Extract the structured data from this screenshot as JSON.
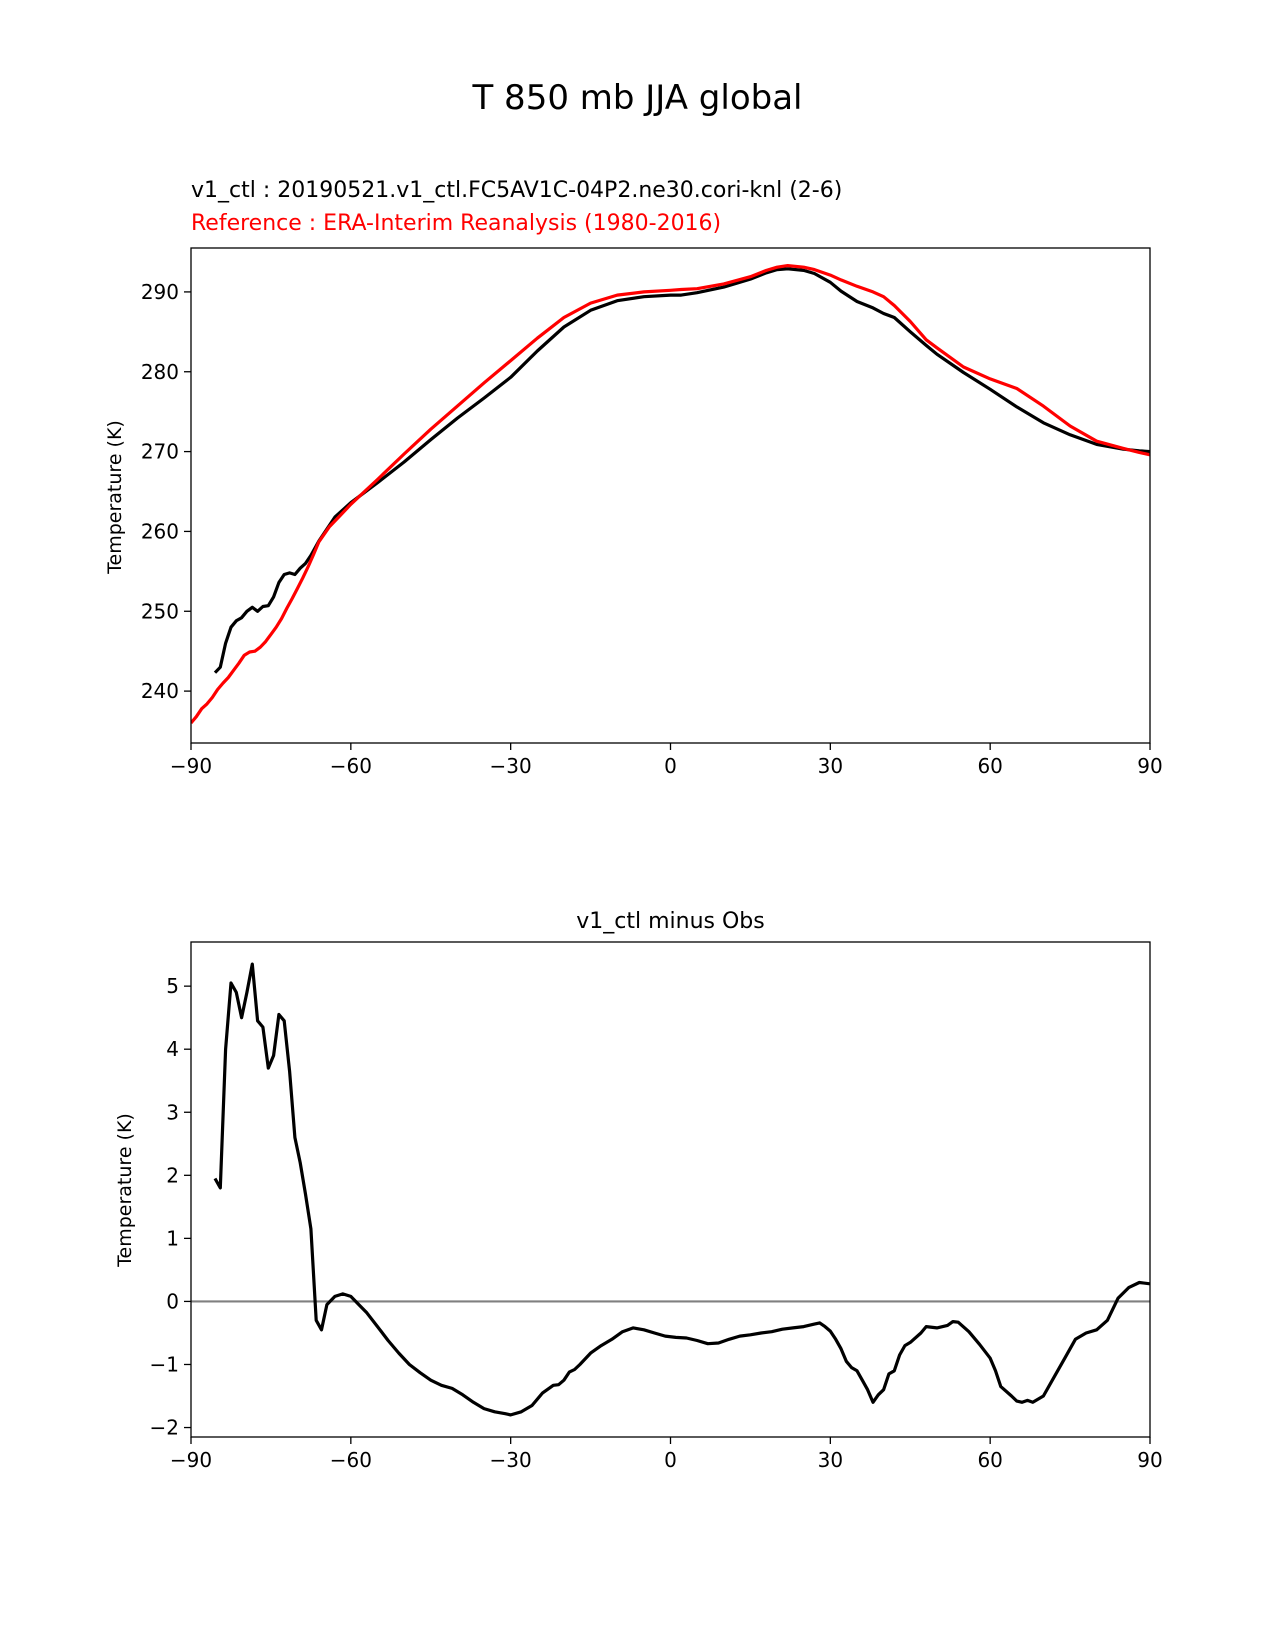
{
  "figure": {
    "title": "T 850 mb JJA global"
  },
  "chart_data": [
    {
      "type": "line",
      "title_lines": [
        {
          "text": "v1_ctl : 20190521.v1_ctl.FC5AV1C-04P2.ne30.cori-knl (2-6)",
          "color": "#000000"
        },
        {
          "text": "Reference : ERA-Interim Reanalysis (1980-2016)",
          "color": "#ff0000"
        }
      ],
      "xlabel": "",
      "ylabel": "Temperature (K)",
      "xlim": [
        -90,
        90
      ],
      "ylim": [
        233.5,
        295.5
      ],
      "xticks": [
        -90,
        -60,
        -30,
        0,
        30,
        60,
        90
      ],
      "xtick_labels": [
        "−90",
        "−60",
        "−30",
        "0",
        "30",
        "60",
        "90"
      ],
      "yticks": [
        240,
        250,
        260,
        270,
        280,
        290
      ],
      "ytick_labels": [
        "240",
        "250",
        "260",
        "270",
        "280",
        "290"
      ],
      "series": [
        {
          "name": "v1_ctl",
          "color": "#000000",
          "x": [
            -85.5,
            -84.5,
            -83.5,
            -82.5,
            -81.5,
            -80.5,
            -79.5,
            -78.5,
            -77.5,
            -76.5,
            -75.5,
            -74.5,
            -73.5,
            -72.5,
            -71.5,
            -70.5,
            -69.5,
            -68.5,
            -67.5,
            -66,
            -63,
            -60,
            -55,
            -50,
            -45,
            -40,
            -35,
            -30,
            -25,
            -20,
            -15,
            -10,
            -5,
            0,
            2,
            5,
            10,
            15,
            18,
            20,
            22,
            25,
            27,
            30,
            32,
            35,
            38,
            40,
            42,
            45,
            48,
            50,
            55,
            60,
            65,
            70,
            75,
            80,
            85,
            88,
            90
          ],
          "y": [
            242.3,
            243.0,
            246.0,
            248.0,
            248.8,
            249.2,
            250.0,
            250.5,
            250.0,
            250.6,
            250.7,
            251.8,
            253.6,
            254.6,
            254.8,
            254.6,
            255.4,
            256.0,
            257.0,
            258.8,
            261.8,
            263.6,
            266.1,
            268.7,
            271.5,
            274.2,
            276.7,
            279.3,
            282.6,
            285.6,
            287.7,
            288.9,
            289.4,
            289.6,
            289.6,
            289.9,
            290.6,
            291.6,
            292.4,
            292.8,
            292.9,
            292.7,
            292.3,
            291.2,
            290.1,
            288.8,
            288.0,
            287.3,
            286.8,
            285.0,
            283.3,
            282.2,
            279.9,
            277.8,
            275.6,
            273.6,
            272.1,
            270.9,
            270.3,
            270.1,
            270.0
          ]
        },
        {
          "name": "Reference",
          "color": "#ff0000",
          "x": [
            -90,
            -89,
            -88,
            -87,
            -86,
            -85,
            -84,
            -83,
            -82,
            -81,
            -80,
            -79,
            -78,
            -77,
            -76,
            -75,
            -74,
            -73,
            -72,
            -71,
            -70,
            -69,
            -68,
            -67,
            -66,
            -64,
            -62,
            -60,
            -55,
            -50,
            -45,
            -40,
            -35,
            -30,
            -25,
            -20,
            -15,
            -10,
            -5,
            0,
            2,
            5,
            10,
            15,
            18,
            20,
            22,
            25,
            27,
            30,
            32,
            35,
            38,
            40,
            42,
            45,
            48,
            50,
            55,
            60,
            65,
            70,
            75,
            80,
            85,
            88,
            90
          ],
          "y": [
            236.0,
            236.8,
            237.8,
            238.4,
            239.2,
            240.2,
            241.0,
            241.7,
            242.6,
            243.5,
            244.5,
            244.9,
            245.0,
            245.5,
            246.2,
            247.1,
            248.0,
            249.1,
            250.4,
            251.6,
            252.9,
            254.2,
            255.6,
            257.1,
            258.7,
            260.6,
            262.0,
            263.4,
            266.5,
            269.7,
            272.8,
            275.7,
            278.6,
            281.4,
            284.2,
            286.8,
            288.6,
            289.6,
            290.0,
            290.2,
            290.3,
            290.4,
            291.0,
            291.9,
            292.7,
            293.1,
            293.3,
            293.1,
            292.8,
            292.1,
            291.5,
            290.7,
            290.0,
            289.4,
            288.3,
            286.3,
            284.0,
            283.0,
            280.6,
            279.1,
            277.9,
            275.7,
            273.2,
            271.3,
            270.4,
            269.9,
            269.6
          ]
        }
      ]
    },
    {
      "type": "line",
      "title": "v1_ctl minus Obs",
      "xlabel": "",
      "ylabel": "Temperature (K)",
      "xlim": [
        -90,
        90
      ],
      "ylim": [
        -2.15,
        5.7
      ],
      "xticks": [
        -90,
        -60,
        -30,
        0,
        30,
        60,
        90
      ],
      "xtick_labels": [
        "−90",
        "−60",
        "−30",
        "0",
        "30",
        "60",
        "90"
      ],
      "yticks": [
        -2,
        -1,
        0,
        1,
        2,
        3,
        4,
        5
      ],
      "ytick_labels": [
        "−2",
        "−1",
        "0",
        "1",
        "2",
        "3",
        "4",
        "5"
      ],
      "reference_line": {
        "y": 0,
        "color": "#808080"
      },
      "series": [
        {
          "name": "v1_ctl minus Obs",
          "color": "#000000",
          "x": [
            -85.5,
            -84.5,
            -83.5,
            -82.5,
            -81.5,
            -80.5,
            -79.5,
            -78.5,
            -77.5,
            -76.5,
            -75.5,
            -74.5,
            -73.5,
            -72.5,
            -71.5,
            -70.5,
            -69.5,
            -68.5,
            -67.5,
            -66.5,
            -65.5,
            -64.5,
            -63,
            -61.5,
            -60,
            -58.5,
            -57,
            -55,
            -53,
            -51,
            -49,
            -47,
            -45,
            -43,
            -41,
            -39,
            -37,
            -35,
            -33,
            -31,
            -30,
            -28,
            -26,
            -24,
            -22,
            -21,
            -20,
            -19,
            -18,
            -17,
            -15,
            -13,
            -11,
            -9,
            -7,
            -5,
            -3,
            -1,
            1,
            3,
            5,
            7,
            9,
            11,
            13,
            15,
            17,
            19,
            21,
            23,
            25,
            27,
            28,
            29,
            30,
            31,
            32,
            33,
            34,
            35,
            36,
            37,
            38,
            39,
            40,
            41,
            42,
            43,
            44,
            45,
            47,
            48,
            50,
            52,
            53,
            54,
            56,
            58,
            60,
            61,
            62,
            64,
            65,
            66,
            67,
            68,
            70,
            72,
            74,
            76,
            78,
            80,
            82,
            84,
            86,
            88,
            90
          ],
          "y": [
            1.95,
            1.8,
            4.0,
            5.05,
            4.9,
            4.5,
            4.9,
            5.35,
            4.45,
            4.35,
            3.7,
            3.9,
            4.55,
            4.45,
            3.65,
            2.6,
            2.2,
            1.7,
            1.15,
            -0.3,
            -0.45,
            -0.05,
            0.08,
            0.12,
            0.08,
            -0.05,
            -0.18,
            -0.4,
            -0.62,
            -0.82,
            -1.0,
            -1.13,
            -1.25,
            -1.33,
            -1.38,
            -1.48,
            -1.6,
            -1.7,
            -1.75,
            -1.78,
            -1.8,
            -1.75,
            -1.65,
            -1.45,
            -1.33,
            -1.32,
            -1.25,
            -1.12,
            -1.08,
            -1.0,
            -0.82,
            -0.7,
            -0.6,
            -0.48,
            -0.42,
            -0.45,
            -0.5,
            -0.55,
            -0.57,
            -0.58,
            -0.62,
            -0.67,
            -0.66,
            -0.6,
            -0.55,
            -0.53,
            -0.5,
            -0.48,
            -0.44,
            -0.42,
            -0.4,
            -0.36,
            -0.34,
            -0.4,
            -0.47,
            -0.6,
            -0.75,
            -0.95,
            -1.05,
            -1.1,
            -1.25,
            -1.4,
            -1.6,
            -1.48,
            -1.4,
            -1.15,
            -1.1,
            -0.85,
            -0.7,
            -0.65,
            -0.5,
            -0.4,
            -0.42,
            -0.38,
            -0.32,
            -0.33,
            -0.48,
            -0.68,
            -0.9,
            -1.1,
            -1.35,
            -1.5,
            -1.58,
            -1.6,
            -1.57,
            -1.6,
            -1.5,
            -1.2,
            -0.9,
            -0.6,
            -0.5,
            -0.45,
            -0.3,
            0.05,
            0.22,
            0.3,
            0.28
          ]
        }
      ]
    }
  ]
}
